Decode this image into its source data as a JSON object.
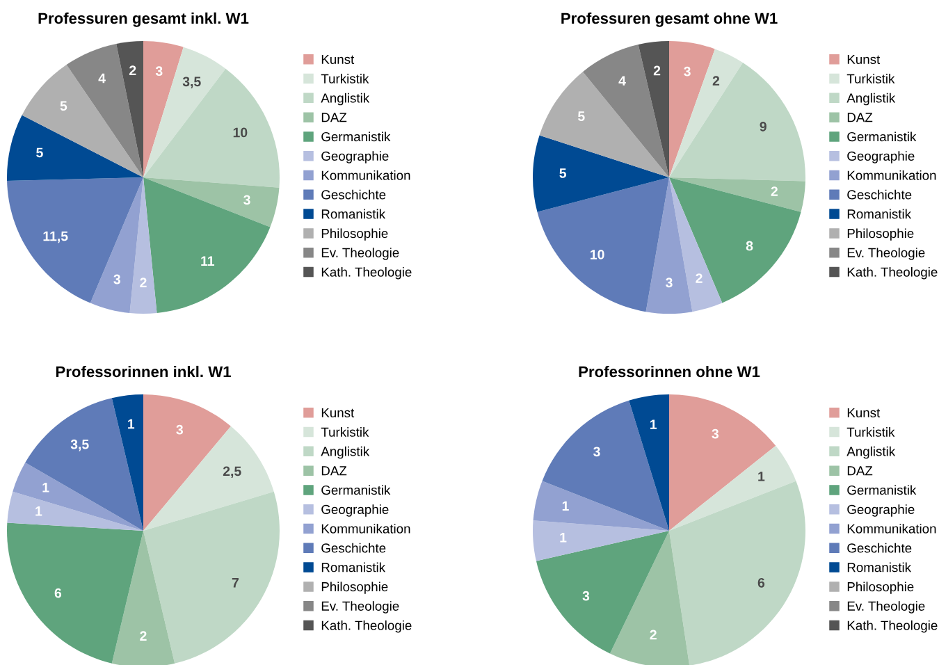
{
  "chart_data": [
    {
      "type": "pie",
      "title": "Professuren gesamt inkl. W1",
      "legend": "right",
      "categories": [
        "Kunst",
        "Turkistik",
        "Anglistik",
        "DAZ",
        "Germanistik",
        "Geographie",
        "Kommunikation",
        "Geschichte",
        "Romanistik",
        "Philosophie",
        "Ev. Theologie",
        "Kath. Theologie"
      ],
      "values": [
        3,
        3.5,
        10,
        3,
        11,
        2,
        3,
        11.5,
        5,
        5,
        4,
        2
      ],
      "value_labels": [
        "3",
        "3,5",
        "10",
        "3",
        "11",
        "2",
        "3",
        "11,5",
        "5",
        "5",
        "4",
        "2"
      ],
      "colors": [
        "#e09d99",
        "#d6e5da",
        "#bfd8c6",
        "#9dc3a6",
        "#5fa47d",
        "#b6bfe0",
        "#92a1d1",
        "#5f7bb8",
        "#004a93",
        "#b0b0b0",
        "#878787",
        "#555555"
      ]
    },
    {
      "type": "pie",
      "title": "Professuren gesamt ohne W1",
      "legend": "right",
      "categories": [
        "Kunst",
        "Turkistik",
        "Anglistik",
        "DAZ",
        "Germanistik",
        "Geographie",
        "Kommunikation",
        "Geschichte",
        "Romanistik",
        "Philosophie",
        "Ev. Theologie",
        "Kath. Theologie"
      ],
      "values": [
        3,
        2,
        9,
        2,
        8,
        2,
        3,
        10,
        5,
        5,
        4,
        2
      ],
      "value_labels": [
        "3",
        "2",
        "9",
        "2",
        "8",
        "2",
        "3",
        "10",
        "5",
        "5",
        "4",
        "2"
      ],
      "colors": [
        "#e09d99",
        "#d6e5da",
        "#bfd8c6",
        "#9dc3a6",
        "#5fa47d",
        "#b6bfe0",
        "#92a1d1",
        "#5f7bb8",
        "#004a93",
        "#b0b0b0",
        "#878787",
        "#555555"
      ]
    },
    {
      "type": "pie",
      "title": "Professorinnen inkl. W1",
      "legend": "right",
      "categories": [
        "Kunst",
        "Turkistik",
        "Anglistik",
        "DAZ",
        "Germanistik",
        "Geographie",
        "Kommunikation",
        "Geschichte",
        "Romanistik",
        "Philosophie",
        "Ev. Theologie",
        "Kath. Theologie"
      ],
      "values": [
        3,
        2.5,
        7,
        2,
        6,
        1,
        1,
        3.5,
        1,
        0,
        0,
        0
      ],
      "value_labels": [
        "3",
        "2,5",
        "7",
        "2",
        "6",
        "1",
        "1",
        "3,5",
        "1",
        null,
        null,
        null
      ],
      "colors": [
        "#e09d99",
        "#d6e5da",
        "#bfd8c6",
        "#9dc3a6",
        "#5fa47d",
        "#b6bfe0",
        "#92a1d1",
        "#5f7bb8",
        "#004a93",
        "#b0b0b0",
        "#878787",
        "#555555"
      ]
    },
    {
      "type": "pie",
      "title": "Professorinnen ohne W1",
      "legend": "right",
      "categories": [
        "Kunst",
        "Turkistik",
        "Anglistik",
        "DAZ",
        "Germanistik",
        "Geographie",
        "Kommunikation",
        "Geschichte",
        "Romanistik",
        "Philosophie",
        "Ev. Theologie",
        "Kath. Theologie"
      ],
      "values": [
        3,
        1,
        6,
        2,
        3,
        1,
        1,
        3,
        1,
        0,
        0,
        0
      ],
      "value_labels": [
        "3",
        "1",
        "6",
        "2",
        "3",
        "1",
        "1",
        "3",
        "1",
        null,
        null,
        null
      ],
      "colors": [
        "#e09d99",
        "#d6e5da",
        "#bfd8c6",
        "#9dc3a6",
        "#5fa47d",
        "#b6bfe0",
        "#92a1d1",
        "#5f7bb8",
        "#004a93",
        "#b0b0b0",
        "#878787",
        "#555555"
      ]
    }
  ]
}
